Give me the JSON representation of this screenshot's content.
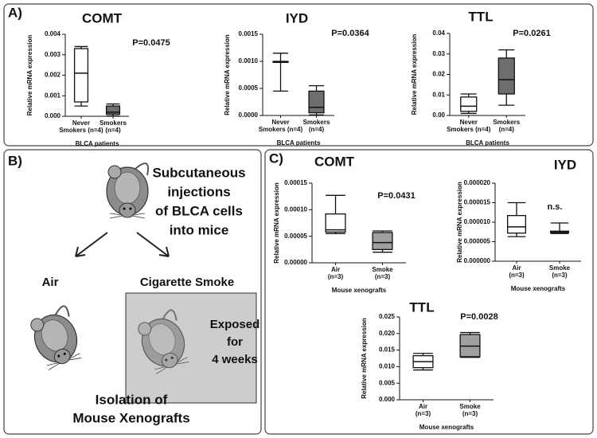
{
  "panels": {
    "a": "A)",
    "b": "B)",
    "c": "C)"
  },
  "diagram": {
    "injection": [
      "Subcutaneous",
      "injections",
      "of BLCA cells",
      "into mice"
    ],
    "air": "Air",
    "smoke": "Cigarette Smoke",
    "exposure": [
      "Exposed",
      "for",
      "4 weeks"
    ],
    "isolation": [
      "Isolation of",
      "Mouse Xenografts"
    ]
  },
  "chart_data": [
    {
      "type": "box",
      "title": "COMT",
      "ylabel": "Relative mRNA expression",
      "xlabel": "BLCA patients",
      "annotation": "P=0.0475",
      "categories": [
        [
          "Never",
          "Smokers (n=4)"
        ],
        [
          "Smokers",
          "(n=4)"
        ]
      ],
      "colors": [
        "#ffffff",
        "#6e6e6e"
      ],
      "boxes": [
        {
          "min": 0.0005,
          "q1": 0.0007,
          "median": 0.0021,
          "q3": 0.0033,
          "max": 0.0034
        },
        {
          "min": 2e-05,
          "q1": 0.0001,
          "median": 0.0002,
          "q3": 0.0005,
          "max": 0.0006
        }
      ],
      "ylim": [
        0,
        0.004
      ],
      "yticks": [
        {
          "value": 0,
          "label": "0.000"
        },
        {
          "value": 0.001,
          "label": "0.001"
        },
        {
          "value": 0.002,
          "label": "0.002"
        },
        {
          "value": 0.003,
          "label": "0.003"
        },
        {
          "value": 0.004,
          "label": "0.004"
        }
      ]
    },
    {
      "type": "box",
      "title": "IYD",
      "ylabel": "Relative mRNA expression",
      "xlabel": "BLCA patients",
      "annotation": "P=0.0364",
      "categories": [
        [
          "Never",
          "Smokers (n=4)"
        ],
        [
          "Smokers",
          "(n=4)"
        ]
      ],
      "colors": [
        "#ffffff",
        "#6e6e6e"
      ],
      "boxes": [
        {
          "min": 0.00045,
          "q1": 0.00098,
          "median": 0.00099,
          "q3": 0.001,
          "max": 0.00115
        },
        {
          "min": 1e-05,
          "q1": 5e-05,
          "median": 0.00015,
          "q3": 0.00045,
          "max": 0.00055
        }
      ],
      "ylim": [
        0,
        0.0015
      ],
      "yticks": [
        {
          "value": 0,
          "label": "0.0000"
        },
        {
          "value": 0.0005,
          "label": "0.0005"
        },
        {
          "value": 0.001,
          "label": "0.0010"
        },
        {
          "value": 0.0015,
          "label": "0.0015"
        }
      ]
    },
    {
      "type": "box",
      "title": "TTL",
      "ylabel": "Relative mRNA expression",
      "xlabel": "BLCA patients",
      "annotation": "P=0.0261",
      "categories": [
        [
          "Never",
          "Smokers (n=4)"
        ],
        [
          "Smokers",
          "(n=4)"
        ]
      ],
      "colors": [
        "#ffffff",
        "#6e6e6e"
      ],
      "boxes": [
        {
          "min": 0.001,
          "q1": 0.002,
          "median": 0.0045,
          "q3": 0.009,
          "max": 0.0105
        },
        {
          "min": 0.005,
          "q1": 0.0105,
          "median": 0.0175,
          "q3": 0.028,
          "max": 0.032
        }
      ],
      "ylim": [
        0,
        0.04
      ],
      "yticks": [
        {
          "value": 0,
          "label": "0.00"
        },
        {
          "value": 0.01,
          "label": "0.01"
        },
        {
          "value": 0.02,
          "label": "0.02"
        },
        {
          "value": 0.03,
          "label": "0.03"
        },
        {
          "value": 0.04,
          "label": "0.04"
        }
      ]
    },
    {
      "type": "box",
      "title": "COMT",
      "ylabel": "Relative mRNA expression",
      "xlabel": "Mouse xenografts",
      "annotation": "P=0.0431",
      "categories": [
        [
          "Air",
          "(n=3)"
        ],
        [
          "Smoke",
          "(n=3)"
        ]
      ],
      "colors": [
        "#ffffff",
        "#a0a0a0"
      ],
      "boxes": [
        {
          "min": 5.5e-05,
          "q1": 5.8e-05,
          "median": 6.2e-05,
          "q3": 9.2e-05,
          "max": 0.000127
        },
        {
          "min": 2e-05,
          "q1": 2.5e-05,
          "median": 3.8e-05,
          "q3": 5.7e-05,
          "max": 6e-05
        }
      ],
      "ylim": [
        0,
        0.00015
      ],
      "yticks": [
        {
          "value": 0,
          "label": "0.00000"
        },
        {
          "value": 5e-05,
          "label": "0.00005"
        },
        {
          "value": 0.0001,
          "label": "0.00010"
        },
        {
          "value": 0.00015,
          "label": "0.00015"
        }
      ]
    },
    {
      "type": "box",
      "title": "IYD",
      "ylabel": "Relative mRNA expression",
      "xlabel": "Mouse xenografts",
      "annotation": "n.s.",
      "categories": [
        [
          "Air",
          "(n=3)"
        ],
        [
          "Smoke",
          "(n=3)"
        ]
      ],
      "colors": [
        "#ffffff",
        "#a0a0a0"
      ],
      "boxes": [
        {
          "min": 6.3e-06,
          "q1": 7.2e-06,
          "median": 8.8e-06,
          "q3": 1.17e-05,
          "max": 1.5e-05
        },
        {
          "min": 7.1e-06,
          "q1": 7.3e-06,
          "median": 7.6e-06,
          "q3": 7.7e-06,
          "max": 9.8e-06
        }
      ],
      "ylim": [
        0,
        2e-05
      ],
      "yticks": [
        {
          "value": 0,
          "label": "0.000000"
        },
        {
          "value": 5e-06,
          "label": "0.000005"
        },
        {
          "value": 1e-05,
          "label": "0.000010"
        },
        {
          "value": 1.5e-05,
          "label": "0.000015"
        },
        {
          "value": 2e-05,
          "label": "0.000020"
        }
      ]
    },
    {
      "type": "box",
      "title": "TTL",
      "ylabel": "Relative mRNA expression",
      "xlabel": "Mouse xenografts",
      "annotation": "P=0.0028",
      "categories": [
        [
          "Air",
          "(n=3)"
        ],
        [
          "Smoke",
          "(n=3)"
        ]
      ],
      "colors": [
        "#ffffff",
        "#a0a0a0"
      ],
      "boxes": [
        {
          "min": 0.009,
          "q1": 0.0097,
          "median": 0.0115,
          "q3": 0.0133,
          "max": 0.014
        },
        {
          "min": 0.0128,
          "q1": 0.013,
          "median": 0.0162,
          "q3": 0.0197,
          "max": 0.0203
        }
      ],
      "ylim": [
        0,
        0.025
      ],
      "yticks": [
        {
          "value": 0,
          "label": "0.000"
        },
        {
          "value": 0.005,
          "label": "0.005"
        },
        {
          "value": 0.01,
          "label": "0.010"
        },
        {
          "value": 0.015,
          "label": "0.015"
        },
        {
          "value": 0.02,
          "label": "0.020"
        },
        {
          "value": 0.025,
          "label": "0.025"
        }
      ]
    }
  ]
}
